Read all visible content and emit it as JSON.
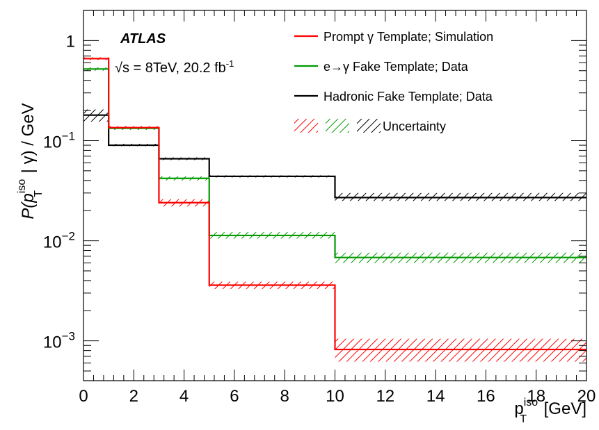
{
  "chart_data": {
    "type": "step-histogram",
    "title": "",
    "experiment": "ATLAS",
    "energy_label": "√s = 8TeV, 20.2 fb",
    "energy_label_sup": "-1",
    "xlabel": "p",
    "xlabel_sup": "iso",
    "xlabel_sub": "T",
    "xlabel_unit": " [GeV]",
    "ylabel_prefix": "P(p",
    "ylabel_sup": "iso",
    "ylabel_sub": "T",
    "ylabel_suffix": " | γ) / GeV",
    "xlim": [
      0,
      20
    ],
    "ylim": [
      0.0004,
      2
    ],
    "yscale": "log",
    "grid": false,
    "legend_position": "top-right",
    "x_ticks": [
      0,
      2,
      4,
      6,
      8,
      10,
      12,
      14,
      16,
      18,
      20
    ],
    "x_tick_labels": [
      "0",
      "2",
      "4",
      "6",
      "8",
      "10",
      "12",
      "14",
      "16",
      "18",
      "20"
    ],
    "y_ticks": [
      0.001,
      0.01,
      0.1,
      1
    ],
    "y_tick_labels": [
      {
        "base": "10",
        "exp": "−3"
      },
      {
        "base": "10",
        "exp": "−2"
      },
      {
        "base": "10",
        "exp": "−1"
      },
      {
        "base": "1",
        "exp": ""
      }
    ],
    "bin_edges": [
      0,
      1,
      3,
      5,
      10,
      20
    ],
    "series": [
      {
        "name": "Prompt γ Template; Simulation",
        "color": "#ff0000",
        "values": [
          0.66,
          0.135,
          0.024,
          0.0036,
          0.00082
        ],
        "unc_low": [
          0.64,
          0.13,
          0.022,
          0.0033,
          0.00062
        ],
        "unc_high": [
          0.68,
          0.14,
          0.026,
          0.0039,
          0.00105
        ]
      },
      {
        "name": "e→γ Fake Template; Data",
        "color": "#009900",
        "values": [
          0.52,
          0.133,
          0.042,
          0.0113,
          0.0068
        ],
        "unc_low": [
          0.5,
          0.128,
          0.04,
          0.0105,
          0.006
        ],
        "unc_high": [
          0.54,
          0.138,
          0.044,
          0.0122,
          0.0076
        ]
      },
      {
        "name": "Hadronic Fake Template; Data",
        "color": "#000000",
        "values": [
          0.18,
          0.09,
          0.066,
          0.044,
          0.027
        ],
        "unc_low": [
          0.155,
          0.088,
          0.064,
          0.043,
          0.025
        ],
        "unc_high": [
          0.205,
          0.093,
          0.068,
          0.045,
          0.03
        ]
      }
    ],
    "uncertainty_label": "Uncertainty"
  }
}
